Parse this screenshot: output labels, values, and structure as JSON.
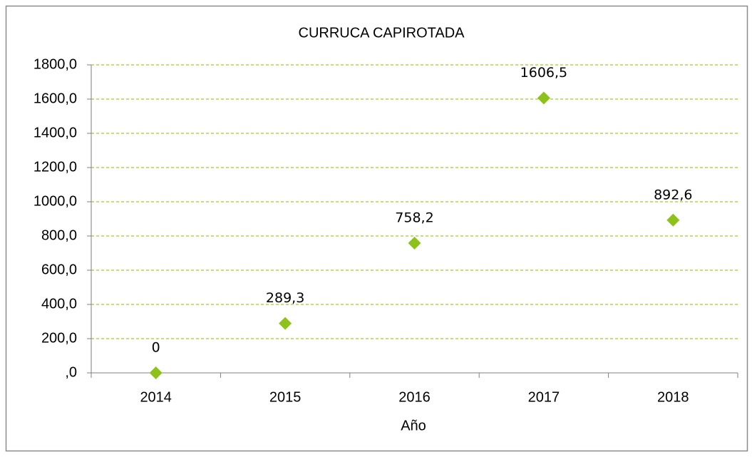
{
  "chart_data": {
    "type": "scatter",
    "title": "CURRUCA  CAPIROTADA",
    "x_label": "Año",
    "categories": [
      "2014",
      "2015",
      "2016",
      "2017",
      "2018"
    ],
    "values": [
      0,
      289.3,
      758.2,
      1606.5,
      892.6
    ],
    "value_labels": [
      "0",
      "289,3",
      "758,2",
      "1606,5",
      "892,6"
    ],
    "color": "#8cc21a",
    "ylim": [
      0,
      1800
    ],
    "yticks": [
      {
        "value": 0,
        "label": ",0"
      },
      {
        "value": 200,
        "label": "200,0"
      },
      {
        "value": 400,
        "label": "400,0"
      },
      {
        "value": 600,
        "label": "600,0"
      },
      {
        "value": 800,
        "label": "800,0"
      },
      {
        "value": 1000,
        "label": "1000,0"
      },
      {
        "value": 1200,
        "label": "1200,0"
      },
      {
        "value": 1400,
        "label": "1400,0"
      },
      {
        "value": 1600,
        "label": "1600,0"
      },
      {
        "value": 1800,
        "label": "1800,0"
      }
    ],
    "grid": true,
    "grid_color": "#9acd32"
  }
}
